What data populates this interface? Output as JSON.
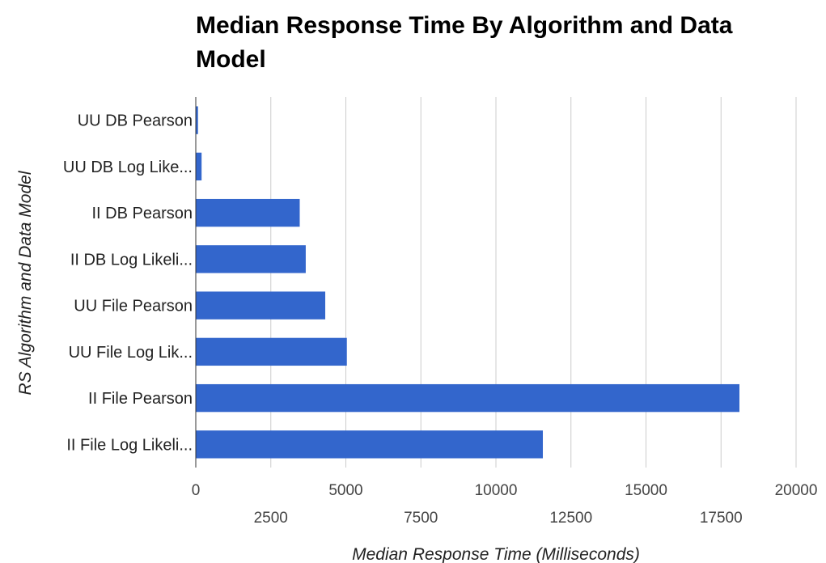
{
  "chart_data": {
    "type": "bar",
    "orientation": "horizontal",
    "title": "Median Response Time By Algorithm and Data Model",
    "title_lines": [
      "Median Response Time By Algorithm and Data",
      "Model"
    ],
    "xlabel": "Median Response Time (Milliseconds)",
    "ylabel": "RS Algorithm and Data Model",
    "categories": [
      "UU DB Pearson",
      "UU DB Log Like...",
      "II DB Pearson",
      "II DB Log Likeli...",
      "UU File Pearson",
      "UU File Log Lik...",
      "II File Pearson",
      "II File Log Likeli..."
    ],
    "values": [
      60,
      180,
      3450,
      3650,
      4300,
      5020,
      18100,
      11550
    ],
    "xlim": [
      0,
      20000
    ],
    "xticks": [
      0,
      2500,
      5000,
      7500,
      10000,
      12500,
      15000,
      17500,
      20000
    ],
    "xtick_labels": [
      "0",
      "2500",
      "5000",
      "7500",
      "10000",
      "12500",
      "15000",
      "17500",
      "20000"
    ],
    "grid": true,
    "legend": "none",
    "bar_color": "#3366cc",
    "grid_color": "#cccccc"
  }
}
